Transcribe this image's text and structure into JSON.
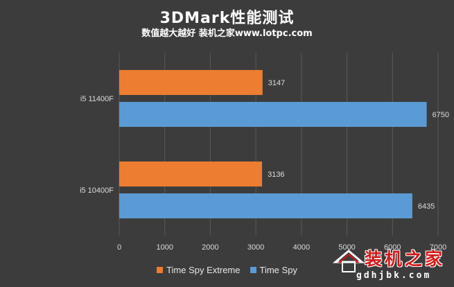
{
  "chart_data": {
    "type": "bar",
    "orientation": "horizontal",
    "title": "3DMark性能测试",
    "subtitle": "数值越大越好 装机之家www.lotpc.com",
    "categories": [
      "i5 11400F",
      "i5 10400F"
    ],
    "series": [
      {
        "name": "Time Spy Extreme",
        "color": "#ed7d31",
        "values": [
          3147,
          3136
        ]
      },
      {
        "name": "Time Spy",
        "color": "#5b9bd5",
        "values": [
          6750,
          6435
        ]
      }
    ],
    "xlim": [
      0,
      7000
    ],
    "xticks": [
      "0",
      "1000",
      "2000",
      "3000",
      "4000",
      "5000",
      "6000",
      "7000"
    ],
    "grid": true,
    "legend_position": "bottom"
  },
  "watermark": {
    "text": "装机之家",
    "url": "gdhjbk.com",
    "icon": "house-logo-icon"
  }
}
